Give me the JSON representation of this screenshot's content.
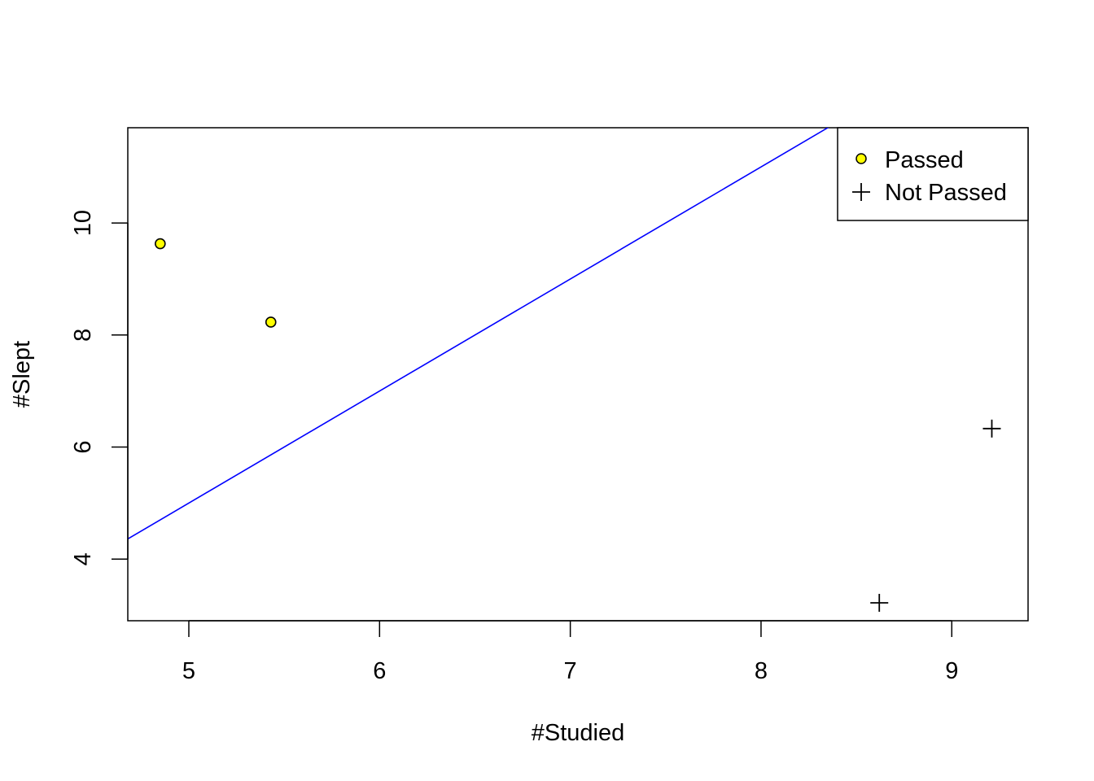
{
  "chart_data": {
    "type": "scatter",
    "title": "",
    "xlabel": "#Studied",
    "ylabel": "#Slept",
    "xlim": [
      4.68,
      9.4
    ],
    "ylim": [
      2.9,
      11.7
    ],
    "x_ticks": [
      5,
      6,
      7,
      8,
      9
    ],
    "y_ticks": [
      4,
      6,
      8,
      10
    ],
    "grid": false,
    "legend_position": "top-right",
    "series": [
      {
        "name": "Passed",
        "marker": "circle",
        "fill_color": "#ffff00",
        "stroke_color": "#000000",
        "points": [
          {
            "x": 4.85,
            "y": 9.63
          },
          {
            "x": 5.43,
            "y": 8.23
          }
        ]
      },
      {
        "name": "Not Passed",
        "marker": "plus",
        "stroke_color": "#000000",
        "points": [
          {
            "x": 9.21,
            "y": 6.33
          },
          {
            "x": 8.62,
            "y": 3.22
          }
        ]
      }
    ],
    "reference_line": {
      "color": "#0000ff",
      "intercept": -5.0,
      "slope": 2.0
    }
  }
}
